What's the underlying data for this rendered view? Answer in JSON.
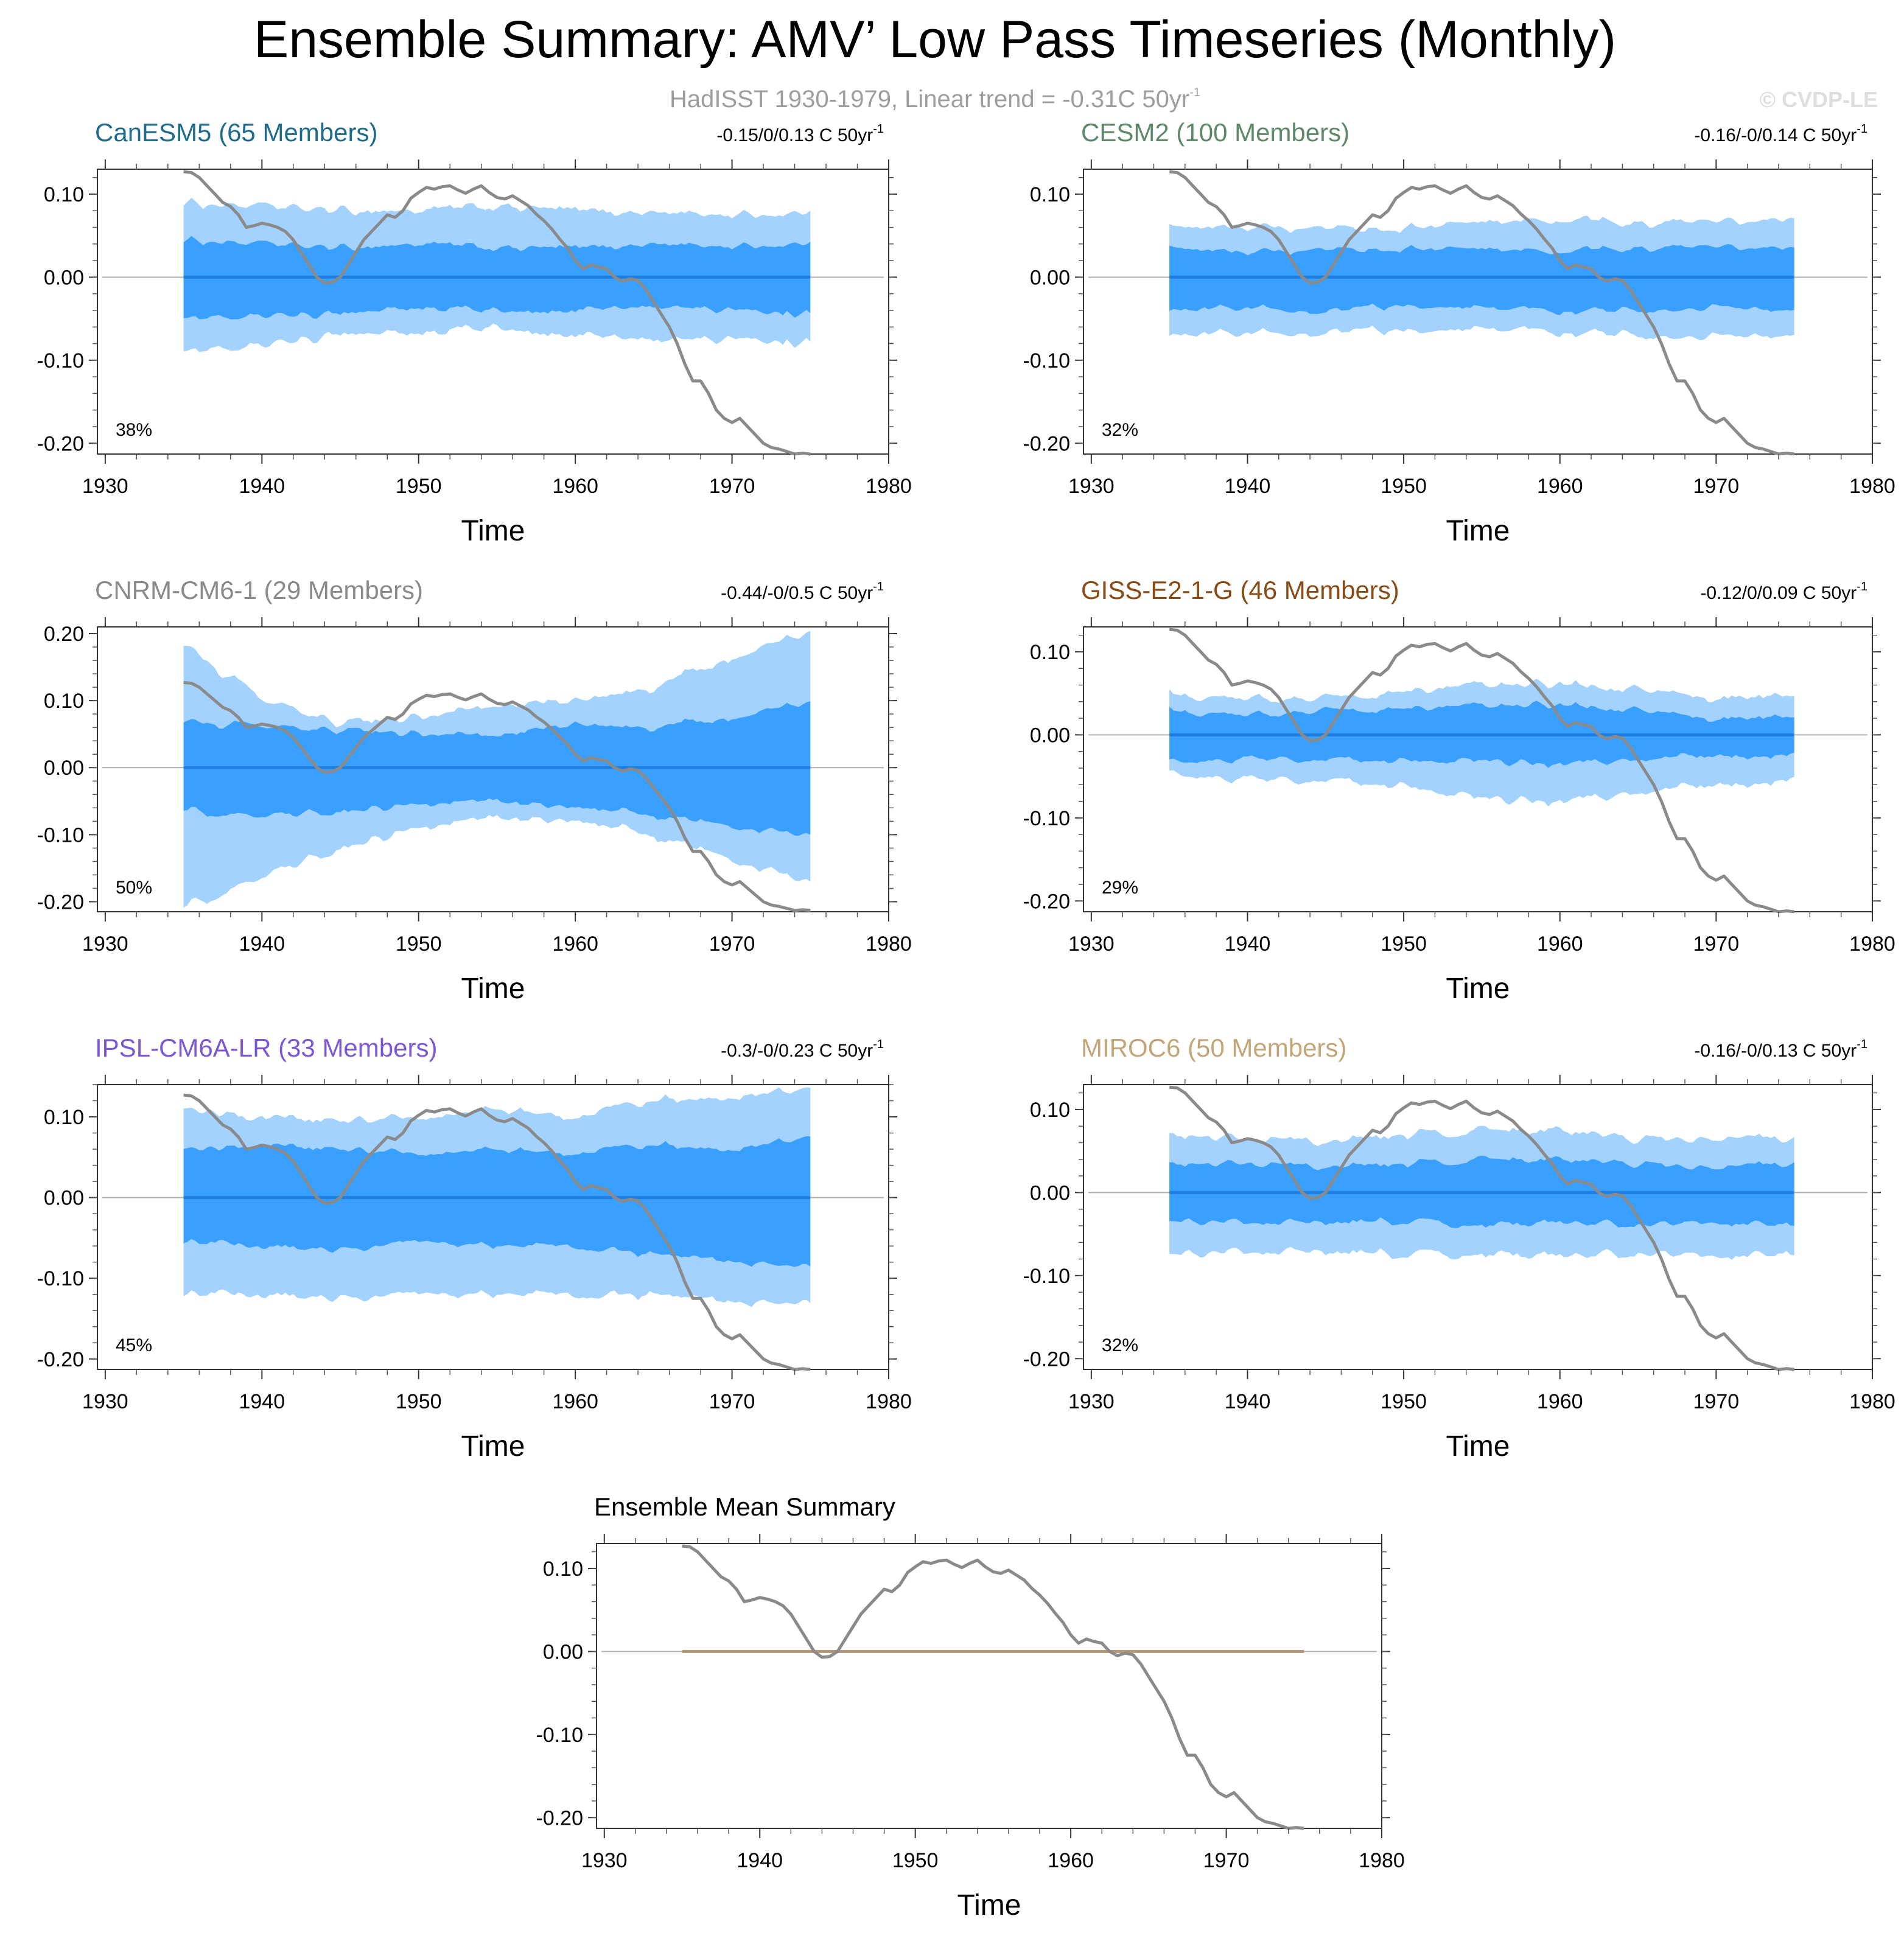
{
  "header": {
    "title": "Ensemble Summary: AMV’ Low Pass Timeseries (Monthly)",
    "subtitle_main": "HadISST 1930-1979, Linear trend = -0.31C 50yr",
    "subtitle_sup": "-1",
    "watermark": "© CVDP-LE"
  },
  "colors": {
    "outer_band": "#a3d2ff",
    "inner_band": "#3aa0ff",
    "mean_line": "#1f7fe0",
    "observed_line": "#8a8a8a",
    "zero_line": "#b0b0b0",
    "summary_mean_line": "#b49a7c"
  },
  "x_axis": {
    "label": "Time",
    "ticks": [
      1930,
      1940,
      1950,
      1960,
      1970,
      1980
    ],
    "tick_labels": [
      "1930",
      "1940",
      "1950",
      "1960",
      "1970",
      "1980"
    ]
  },
  "observed_series": {
    "name": "HadISST",
    "x": [
      1935.0,
      1935.5,
      1936.0,
      1936.5,
      1937.0,
      1937.5,
      1938.0,
      1938.5,
      1939.0,
      1939.5,
      1940.0,
      1940.5,
      1941.0,
      1941.5,
      1942.0,
      1942.5,
      1943.0,
      1943.5,
      1944.0,
      1944.5,
      1945.0,
      1945.5,
      1946.0,
      1946.5,
      1947.0,
      1947.5,
      1948.0,
      1948.5,
      1949.0,
      1949.5,
      1950.0,
      1950.5,
      1951.0,
      1951.5,
      1952.0,
      1952.5,
      1953.0,
      1953.5,
      1954.0,
      1954.5,
      1955.0,
      1955.5,
      1956.0,
      1956.5,
      1957.0,
      1957.5,
      1958.0,
      1958.5,
      1959.0,
      1959.5,
      1960.0,
      1960.5,
      1961.0,
      1961.5,
      1962.0,
      1962.5,
      1963.0,
      1963.5,
      1964.0,
      1964.5,
      1965.0,
      1965.5,
      1966.0,
      1966.5,
      1967.0,
      1967.5,
      1968.0,
      1968.5,
      1969.0,
      1969.5,
      1970.0,
      1970.5,
      1971.0,
      1971.5,
      1972.0,
      1972.5,
      1973.0,
      1973.5,
      1974.0,
      1974.5,
      1975.0
    ],
    "y": [
      0.127,
      0.126,
      0.12,
      0.11,
      0.1,
      0.09,
      0.085,
      0.075,
      0.06,
      0.062,
      0.065,
      0.063,
      0.06,
      0.055,
      0.045,
      0.03,
      0.015,
      0.0,
      -0.007,
      -0.006,
      0.0,
      0.015,
      0.03,
      0.045,
      0.055,
      0.065,
      0.075,
      0.072,
      0.08,
      0.095,
      0.102,
      0.108,
      0.106,
      0.109,
      0.11,
      0.105,
      0.101,
      0.106,
      0.11,
      0.102,
      0.096,
      0.094,
      0.098,
      0.092,
      0.086,
      0.076,
      0.068,
      0.058,
      0.046,
      0.035,
      0.02,
      0.01,
      0.015,
      0.012,
      0.01,
      0.0,
      -0.005,
      -0.002,
      -0.004,
      -0.015,
      -0.03,
      -0.045,
      -0.06,
      -0.08,
      -0.105,
      -0.125,
      -0.125,
      -0.14,
      -0.16,
      -0.17,
      -0.175,
      -0.17,
      -0.18,
      -0.19,
      -0.2,
      -0.205,
      -0.207,
      -0.21,
      -0.213,
      -0.212,
      -0.213
    ]
  },
  "chart_data": [
    {
      "type": "area",
      "title": "CanESM5 (65 Members)",
      "title_color": "#1f6b8c",
      "trend_text": "-0.15/0/0.13 C 50yr",
      "trend_sup": "-1",
      "percent_label": "38%",
      "xlabel": "Time",
      "ylim": [
        -0.213,
        0.13
      ],
      "y_ticks": [
        -0.2,
        -0.1,
        0.0,
        0.1
      ],
      "y_tick_labels": [
        "-0.20",
        "-0.10",
        "0.00",
        "0.10"
      ],
      "band_x": [
        1935,
        1940,
        1945,
        1950,
        1955,
        1960,
        1965,
        1970,
        1975
      ],
      "outer_upper": [
        0.09,
        0.085,
        0.08,
        0.08,
        0.085,
        0.08,
        0.078,
        0.075,
        0.077
      ],
      "outer_lower": [
        -0.09,
        -0.08,
        -0.07,
        -0.065,
        -0.06,
        -0.07,
        -0.075,
        -0.075,
        -0.08
      ],
      "inner_upper": [
        0.045,
        0.04,
        0.035,
        0.04,
        0.035,
        0.035,
        0.04,
        0.037,
        0.04
      ],
      "inner_lower": [
        -0.05,
        -0.045,
        -0.045,
        -0.035,
        -0.04,
        -0.04,
        -0.035,
        -0.04,
        -0.045
      ],
      "ensemble_mean": 0.0
    },
    {
      "type": "area",
      "title": "CESM2 (100 Members)",
      "title_color": "#5e8a6a",
      "trend_text": "-0.16/-0/0.14 C 50yr",
      "trend_sup": "-1",
      "percent_label": "32%",
      "xlabel": "Time",
      "ylim": [
        -0.213,
        0.13
      ],
      "y_ticks": [
        -0.2,
        -0.1,
        0.0,
        0.1
      ],
      "y_tick_labels": [
        "-0.20",
        "-0.10",
        "0.00",
        "0.10"
      ],
      "band_x": [
        1935,
        1940,
        1945,
        1950,
        1955,
        1960,
        1965,
        1970,
        1975
      ],
      "outer_upper": [
        0.06,
        0.06,
        0.055,
        0.06,
        0.065,
        0.068,
        0.065,
        0.065,
        0.07
      ],
      "outer_lower": [
        -0.07,
        -0.065,
        -0.065,
        -0.065,
        -0.06,
        -0.065,
        -0.07,
        -0.07,
        -0.07
      ],
      "inner_upper": [
        0.035,
        0.03,
        0.03,
        0.035,
        0.033,
        0.03,
        0.035,
        0.035,
        0.035
      ],
      "inner_lower": [
        -0.04,
        -0.035,
        -0.04,
        -0.035,
        -0.035,
        -0.04,
        -0.04,
        -0.035,
        -0.04
      ],
      "ensemble_mean": 0.0
    },
    {
      "type": "area",
      "title": "CNRM-CM6-1 (29 Members)",
      "title_color": "#8a8a8a",
      "trend_text": "-0.44/-0/0.5 C 50yr",
      "trend_sup": "-1",
      "percent_label": "50%",
      "xlabel": "Time",
      "ylim": [
        -0.215,
        0.21
      ],
      "y_ticks": [
        -0.2,
        -0.1,
        0.0,
        0.1,
        0.2
      ],
      "y_tick_labels": [
        "-0.20",
        "-0.10",
        "0.00",
        "0.10",
        "0.20"
      ],
      "band_x": [
        1935,
        1940,
        1945,
        1950,
        1955,
        1960,
        1965,
        1970,
        1975
      ],
      "outer_upper": [
        0.185,
        0.1,
        0.065,
        0.075,
        0.095,
        0.1,
        0.12,
        0.165,
        0.205
      ],
      "outer_lower": [
        -0.21,
        -0.16,
        -0.12,
        -0.09,
        -0.075,
        -0.08,
        -0.1,
        -0.14,
        -0.17
      ],
      "inner_upper": [
        0.07,
        0.06,
        0.055,
        0.05,
        0.05,
        0.065,
        0.06,
        0.075,
        0.1
      ],
      "inner_lower": [
        -0.065,
        -0.07,
        -0.065,
        -0.055,
        -0.05,
        -0.06,
        -0.07,
        -0.09,
        -0.1
      ],
      "ensemble_mean": 0.0
    },
    {
      "type": "area",
      "title": "GISS-E2-1-G (46 Members)",
      "title_color": "#8a4c16",
      "trend_text": "-0.12/0/0.09 C 50yr",
      "trend_sup": "-1",
      "percent_label": "29%",
      "xlabel": "Time",
      "ylim": [
        -0.213,
        0.13
      ],
      "y_ticks": [
        -0.2,
        -0.1,
        0.0,
        0.1
      ],
      "y_tick_labels": [
        "-0.20",
        "-0.10",
        "0.00",
        "0.10"
      ],
      "band_x": [
        1935,
        1940,
        1945,
        1950,
        1955,
        1960,
        1965,
        1970,
        1975
      ],
      "outer_upper": [
        0.05,
        0.045,
        0.045,
        0.05,
        0.06,
        0.06,
        0.055,
        0.045,
        0.045
      ],
      "outer_lower": [
        -0.05,
        -0.055,
        -0.055,
        -0.06,
        -0.075,
        -0.08,
        -0.07,
        -0.06,
        -0.055
      ],
      "inner_upper": [
        0.03,
        0.025,
        0.03,
        0.03,
        0.035,
        0.035,
        0.03,
        0.02,
        0.02
      ],
      "inner_lower": [
        -0.035,
        -0.03,
        -0.03,
        -0.03,
        -0.03,
        -0.035,
        -0.03,
        -0.025,
        -0.025
      ],
      "ensemble_mean": 0.0
    },
    {
      "type": "area",
      "title": "IPSL-CM6A-LR (33 Members)",
      "title_color": "#7b57d6",
      "trend_text": "-0.3/-0/0.23 C 50yr",
      "trend_sup": "-1",
      "percent_label": "45%",
      "xlabel": "Time",
      "ylim": [
        -0.213,
        0.14
      ],
      "y_ticks": [
        -0.2,
        -0.1,
        0.0,
        0.1
      ],
      "y_tick_labels": [
        "-0.20",
        "-0.10",
        "0.00",
        "0.10"
      ],
      "band_x": [
        1935,
        1940,
        1945,
        1950,
        1955,
        1960,
        1965,
        1970,
        1975
      ],
      "outer_upper": [
        0.11,
        0.1,
        0.095,
        0.1,
        0.11,
        0.1,
        0.12,
        0.125,
        0.135
      ],
      "outer_lower": [
        -0.12,
        -0.12,
        -0.125,
        -0.12,
        -0.12,
        -0.12,
        -0.12,
        -0.13,
        -0.13
      ],
      "inner_upper": [
        0.06,
        0.065,
        0.06,
        0.055,
        0.06,
        0.055,
        0.065,
        0.06,
        0.075
      ],
      "inner_lower": [
        -0.055,
        -0.06,
        -0.065,
        -0.055,
        -0.06,
        -0.06,
        -0.07,
        -0.08,
        -0.085
      ],
      "ensemble_mean": 0.0
    },
    {
      "type": "area",
      "title": "MIROC6 (50 Members)",
      "title_color": "#c4a578",
      "trend_text": "-0.16/-0/0.13 C 50yr",
      "trend_sup": "-1",
      "percent_label": "32%",
      "xlabel": "Time",
      "ylim": [
        -0.213,
        0.13
      ],
      "y_ticks": [
        -0.2,
        -0.1,
        0.0,
        0.1
      ],
      "y_tick_labels": [
        "-0.20",
        "-0.10",
        "0.00",
        "0.10"
      ],
      "band_x": [
        1935,
        1940,
        1945,
        1950,
        1955,
        1960,
        1965,
        1970,
        1975
      ],
      "outer_upper": [
        0.07,
        0.065,
        0.06,
        0.07,
        0.075,
        0.075,
        0.065,
        0.065,
        0.065
      ],
      "outer_lower": [
        -0.075,
        -0.07,
        -0.07,
        -0.075,
        -0.075,
        -0.075,
        -0.075,
        -0.075,
        -0.075
      ],
      "inner_upper": [
        0.035,
        0.035,
        0.03,
        0.035,
        0.04,
        0.04,
        0.035,
        0.03,
        0.035
      ],
      "inner_lower": [
        -0.035,
        -0.035,
        -0.035,
        -0.035,
        -0.04,
        -0.035,
        -0.04,
        -0.035,
        -0.04
      ],
      "ensemble_mean": 0.0
    },
    {
      "type": "line",
      "title": "Ensemble Mean Summary",
      "title_color": "#000000",
      "xlabel": "Time",
      "ylim": [
        -0.213,
        0.13
      ],
      "y_ticks": [
        -0.2,
        -0.1,
        0.0,
        0.1
      ],
      "y_tick_labels": [
        "-0.20",
        "-0.10",
        "0.00",
        "0.10"
      ],
      "series": [
        {
          "name": "Ensemble mean",
          "x": [
            1935,
            1975
          ],
          "values": [
            0.0,
            0.0
          ]
        },
        {
          "name": "HadISST",
          "source": "observed_series"
        }
      ]
    }
  ]
}
